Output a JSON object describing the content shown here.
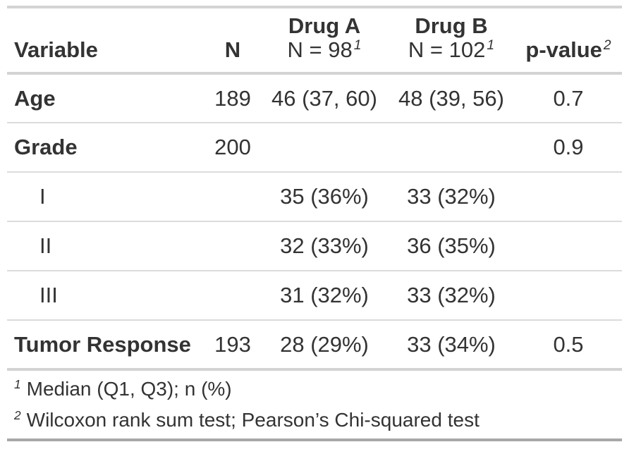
{
  "table": {
    "columns": [
      {
        "id": "variable",
        "label": "Variable",
        "sublabel": "",
        "footnote_mark": "",
        "align": "left"
      },
      {
        "id": "n",
        "label": "N",
        "sublabel": "",
        "footnote_mark": "",
        "align": "center"
      },
      {
        "id": "drug_a",
        "label": "Drug A",
        "sublabel": "N = 98",
        "footnote_mark": "1",
        "align": "center"
      },
      {
        "id": "drug_b",
        "label": "Drug B",
        "sublabel": "N = 102",
        "footnote_mark": "1",
        "align": "center"
      },
      {
        "id": "p_value",
        "label": "p-value",
        "sublabel": "",
        "footnote_mark": "2",
        "align": "center"
      }
    ],
    "rows": [
      {
        "variable": "Age",
        "n": "189",
        "drug_a": "46 (37, 60)",
        "drug_b": "48 (39, 56)",
        "p_value": "0.7"
      },
      {
        "variable": "Grade",
        "n": "200",
        "drug_a": "",
        "drug_b": "",
        "p_value": "0.9"
      },
      {
        "variable": "I",
        "n": "",
        "drug_a": "35 (36%)",
        "drug_b": "33 (32%)",
        "p_value": ""
      },
      {
        "variable": "II",
        "n": "",
        "drug_a": "32 (33%)",
        "drug_b": "36 (35%)",
        "p_value": ""
      },
      {
        "variable": "III",
        "n": "",
        "drug_a": "31 (32%)",
        "drug_b": "33 (32%)",
        "p_value": ""
      },
      {
        "variable": "Tumor Response",
        "n": "193",
        "drug_a": "28 (29%)",
        "drug_b": "33 (34%)",
        "p_value": "0.5"
      }
    ],
    "footnotes": [
      {
        "mark": "1",
        "text": "Median (Q1, Q3); n (%)"
      },
      {
        "mark": "2",
        "text": "Wilcoxon rank sum test; Pearson’s Chi-squared test"
      }
    ],
    "colors": {
      "text": "#333333",
      "border_light": "#d3d3d3",
      "border_row": "#dbdbdb",
      "border_bottom": "#a8a8a8",
      "background": "#ffffff"
    }
  }
}
